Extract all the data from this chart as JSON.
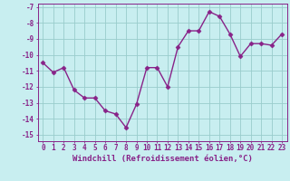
{
  "x": [
    0,
    1,
    2,
    3,
    4,
    5,
    6,
    7,
    8,
    9,
    10,
    11,
    12,
    13,
    14,
    15,
    16,
    17,
    18,
    19,
    20,
    21,
    22,
    23
  ],
  "y": [
    -10.5,
    -11.1,
    -10.8,
    -12.2,
    -12.7,
    -12.7,
    -13.5,
    -13.7,
    -14.55,
    -13.1,
    -10.8,
    -10.8,
    -12.0,
    -9.5,
    -8.5,
    -8.5,
    -7.3,
    -7.6,
    -8.7,
    -10.1,
    -9.3,
    -9.3,
    -9.4,
    -8.7
  ],
  "color": "#882288",
  "bg_color": "#c8eef0",
  "grid_color": "#99cccc",
  "ylim": [
    -15.4,
    -6.8
  ],
  "yticks": [
    -15,
    -14,
    -13,
    -12,
    -11,
    -10,
    -9,
    -8,
    -7
  ],
  "xticks": [
    0,
    1,
    2,
    3,
    4,
    5,
    6,
    7,
    8,
    9,
    10,
    11,
    12,
    13,
    14,
    15,
    16,
    17,
    18,
    19,
    20,
    21,
    22,
    23
  ],
  "xlabel": "Windchill (Refroidissement éolien,°C)",
  "xlabel_fontsize": 6.5,
  "tick_fontsize": 5.5,
  "marker": "D",
  "marker_size": 2.5,
  "line_width": 1.0
}
